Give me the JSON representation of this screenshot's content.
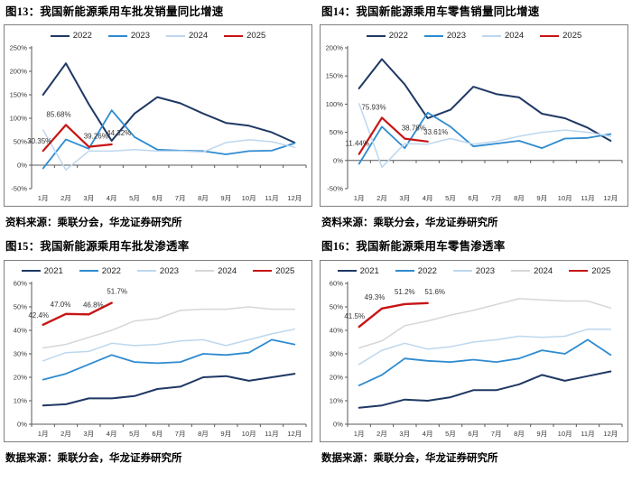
{
  "chart_data": [
    {
      "type": "line",
      "title": "图13：我国新能源乘用车批发销量同比增速",
      "source": "资料来源：乘联分会，华龙证券研究所",
      "x": [
        "1月",
        "2月",
        "3月",
        "4月",
        "5月",
        "6月",
        "7月",
        "8月",
        "9月",
        "10月",
        "11月",
        "12月"
      ],
      "ylim": [
        -50,
        250
      ],
      "yticks": [
        -50,
        0,
        50,
        100,
        150,
        200,
        250
      ],
      "legend_position": "top",
      "grid": false,
      "series": [
        {
          "name": "2022",
          "color": "#1f3864",
          "width": 2,
          "values": [
            150,
            217,
            130,
            52,
            110,
            145,
            132,
            110,
            90,
            84,
            70,
            48
          ]
        },
        {
          "name": "2023",
          "color": "#2e8bd0",
          "width": 1.8,
          "values": [
            -7,
            55,
            35,
            117,
            60,
            33,
            31,
            30,
            23,
            30,
            31,
            47
          ]
        },
        {
          "name": "2024",
          "color": "#bdd7ee",
          "width": 1.5,
          "values": [
            75,
            -10,
            30,
            30,
            33,
            30,
            30,
            28,
            48,
            54,
            50,
            38
          ]
        },
        {
          "name": "2025",
          "color": "#c81414",
          "width": 2.2,
          "values": [
            30.35,
            85.68,
            39.26,
            44.32
          ],
          "labels": [
            {
              "text": "30.35%",
              "dx": -4,
              "dy": -8
            },
            {
              "text": "85.68%",
              "dx": -8,
              "dy": -9
            },
            {
              "text": "39.26%",
              "dx": 8,
              "dy": -9
            },
            {
              "text": "44.32%",
              "dx": 8,
              "dy": -10
            }
          ]
        }
      ]
    },
    {
      "type": "line",
      "title": "图14：我国新能源乘用车零售销量同比增速",
      "source": "资料来源：乘联分会，华龙证券研究所",
      "x": [
        "1月",
        "2月",
        "3月",
        "4月",
        "5月",
        "6月",
        "7月",
        "8月",
        "9月",
        "10月",
        "11月",
        "12月"
      ],
      "ylim": [
        -50,
        200
      ],
      "yticks": [
        -50,
        0,
        50,
        100,
        150,
        200
      ],
      "legend_position": "top",
      "grid": false,
      "series": [
        {
          "name": "2022",
          "color": "#1f3864",
          "width": 2,
          "values": [
            128,
            180,
            135,
            75,
            90,
            131,
            118,
            112,
            83,
            75,
            58,
            35
          ]
        },
        {
          "name": "2023",
          "color": "#2e8bd0",
          "width": 1.8,
          "values": [
            -6,
            60,
            22,
            85,
            60,
            25,
            30,
            35,
            22,
            39,
            40,
            47
          ]
        },
        {
          "name": "2024",
          "color": "#bdd7ee",
          "width": 1.5,
          "values": [
            101,
            -12,
            30,
            29,
            39,
            29,
            34,
            43,
            50,
            54,
            50,
            43
          ]
        },
        {
          "name": "2025",
          "color": "#c81414",
          "width": 2.2,
          "values": [
            11.44,
            75.93,
            38.78,
            33.61
          ],
          "labels": [
            {
              "text": "11.44%",
              "dx": -2,
              "dy": -9
            },
            {
              "text": "75.93%",
              "dx": -9,
              "dy": -9
            },
            {
              "text": "38.78%",
              "dx": 10,
              "dy": -9
            },
            {
              "text": "33.61%",
              "dx": 9,
              "dy": -8
            }
          ]
        }
      ]
    },
    {
      "type": "line",
      "title": "图15：我国新能源乘用车批发渗透率",
      "source": "数据来源：乘联分会，华龙证券研究所",
      "x": [
        "1月",
        "2月",
        "3月",
        "4月",
        "5月",
        "6月",
        "7月",
        "8月",
        "9月",
        "10月",
        "11月",
        "12月"
      ],
      "ylim": [
        0,
        60
      ],
      "yticks": [
        0,
        10,
        20,
        30,
        40,
        50,
        60
      ],
      "legend_position": "top",
      "grid": false,
      "series": [
        {
          "name": "2021",
          "color": "#1f3864",
          "width": 2,
          "values": [
            8,
            8.5,
            11,
            11,
            12,
            15,
            16,
            20,
            20.5,
            18.5,
            20,
            21.5
          ]
        },
        {
          "name": "2022",
          "color": "#2e8bd0",
          "width": 1.8,
          "values": [
            19,
            21.5,
            25.5,
            29.5,
            26.5,
            26,
            26.5,
            30,
            29.5,
            30.5,
            36,
            34
          ]
        },
        {
          "name": "2023",
          "color": "#bdd7ee",
          "width": 1.5,
          "values": [
            27,
            30.5,
            31,
            34.5,
            33.5,
            34,
            35.5,
            36,
            33.5,
            36,
            38.5,
            40.5
          ]
        },
        {
          "name": "2024",
          "color": "#d6d6d6",
          "width": 1.5,
          "values": [
            32.5,
            34,
            37,
            40,
            44,
            45,
            48.5,
            49,
            49,
            50,
            49,
            49
          ]
        },
        {
          "name": "2025",
          "color": "#c81414",
          "width": 2.4,
          "values": [
            42.4,
            47.0,
            46.8,
            51.7
          ],
          "labels": [
            {
              "text": "42.4%",
              "dx": -5,
              "dy": -8
            },
            {
              "text": "47.0%",
              "dx": -6,
              "dy": -8
            },
            {
              "text": "46.8%",
              "dx": 5,
              "dy": -8
            },
            {
              "text": "51.7%",
              "dx": 6,
              "dy": -10
            }
          ]
        }
      ]
    },
    {
      "type": "line",
      "title": "图16：我国新能源乘用车零售渗透率",
      "source": "数据来源：乘联分会，华龙证券研究所",
      "x": [
        "1月",
        "2月",
        "3月",
        "4月",
        "5月",
        "6月",
        "7月",
        "8月",
        "9月",
        "10月",
        "11月",
        "12月"
      ],
      "ylim": [
        0,
        60
      ],
      "yticks": [
        0,
        10,
        20,
        30,
        40,
        50,
        60
      ],
      "legend_position": "top",
      "grid": false,
      "series": [
        {
          "name": "2021",
          "color": "#1f3864",
          "width": 2,
          "values": [
            7,
            8,
            10.5,
            10,
            11.5,
            14.5,
            14.5,
            17,
            21,
            18.5,
            20.5,
            22.5
          ]
        },
        {
          "name": "2022",
          "color": "#2e8bd0",
          "width": 1.8,
          "values": [
            16.5,
            21,
            28,
            27,
            26.5,
            27.5,
            26.5,
            28,
            31.5,
            30,
            36,
            29.5
          ]
        },
        {
          "name": "2023",
          "color": "#bdd7ee",
          "width": 1.5,
          "values": [
            25.5,
            31.5,
            34.5,
            32,
            33,
            35,
            36,
            37.5,
            37,
            37.5,
            40.5,
            40.5
          ]
        },
        {
          "name": "2024",
          "color": "#d6d6d6",
          "width": 1.5,
          "values": [
            32.5,
            35.5,
            42,
            44,
            46.5,
            48.5,
            51,
            53.5,
            53,
            52.5,
            52.5,
            49.5
          ]
        },
        {
          "name": "2025",
          "color": "#c81414",
          "width": 2.4,
          "values": [
            41.5,
            49.3,
            51.2,
            51.6
          ],
          "labels": [
            {
              "text": "41.5%",
              "dx": -5,
              "dy": -9
            },
            {
              "text": "49.3%",
              "dx": -8,
              "dy": -10
            },
            {
              "text": "51.2%",
              "dx": 0,
              "dy": -11
            },
            {
              "text": "51.6%",
              "dx": 8,
              "dy": -10
            }
          ]
        }
      ]
    }
  ]
}
